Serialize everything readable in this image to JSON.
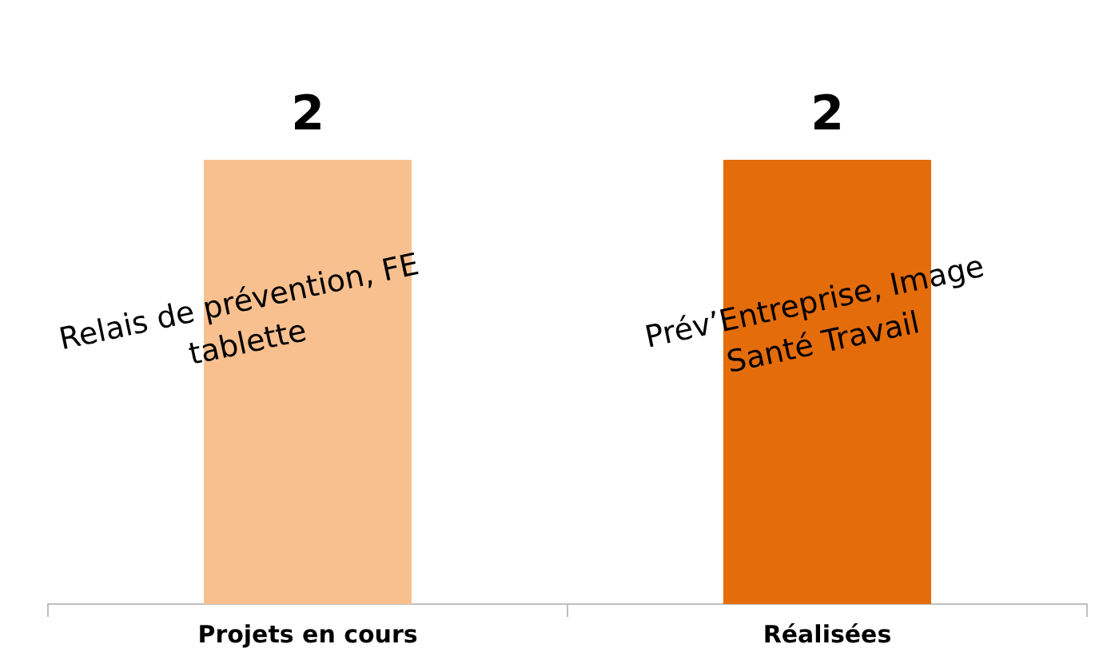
{
  "chart_data": {
    "type": "bar",
    "categories": [
      "Projets en cours",
      "Réalisées"
    ],
    "values": [
      2,
      2
    ],
    "colors": [
      "#f9c08f",
      "#e46c0a"
    ],
    "data_labels": true,
    "annotations": [
      "Relais de prévention, FE\ntablette",
      "Prév’Entreprise, Image\nSanté Travail"
    ]
  }
}
